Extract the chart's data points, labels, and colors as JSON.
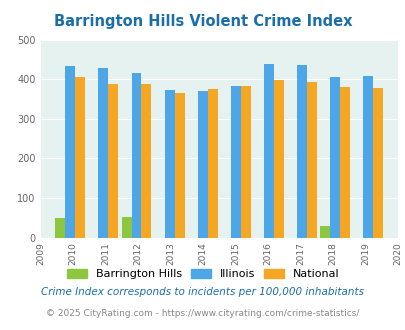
{
  "title": "Barrington Hills Violent Crime Index",
  "bar_years": [
    2010,
    2011,
    2012,
    2013,
    2014,
    2015,
    2016,
    2017,
    2018,
    2019
  ],
  "all_years_labels": [
    "2009",
    "2010",
    "2011",
    "2012",
    "2013",
    "2014",
    "2015",
    "2016",
    "2017",
    "2018",
    "2019",
    "2020"
  ],
  "barrington_hills": [
    50,
    0,
    53,
    0,
    0,
    0,
    0,
    0,
    30,
    0
  ],
  "illinois": [
    433,
    428,
    415,
    373,
    370,
    383,
    438,
    437,
    405,
    408
  ],
  "national": [
    405,
    387,
    387,
    366,
    375,
    383,
    397,
    394,
    381,
    379
  ],
  "ylim": [
    0,
    500
  ],
  "yticks": [
    0,
    100,
    200,
    300,
    400,
    500
  ],
  "bar_width": 0.3,
  "color_bh": "#8dc63f",
  "color_il": "#4da6e8",
  "color_nat": "#f5a623",
  "bg_color": "#e6f2f0",
  "title_color": "#1a6fa8",
  "grid_color": "#ffffff",
  "legend_labels": [
    "Barrington Hills",
    "Illinois",
    "National"
  ],
  "footnote1": "Crime Index corresponds to incidents per 100,000 inhabitants",
  "footnote2": "© 2025 CityRating.com - https://www.cityrating.com/crime-statistics/",
  "footnote1_color": "#1a6fa8",
  "footnote2_color": "#888888"
}
